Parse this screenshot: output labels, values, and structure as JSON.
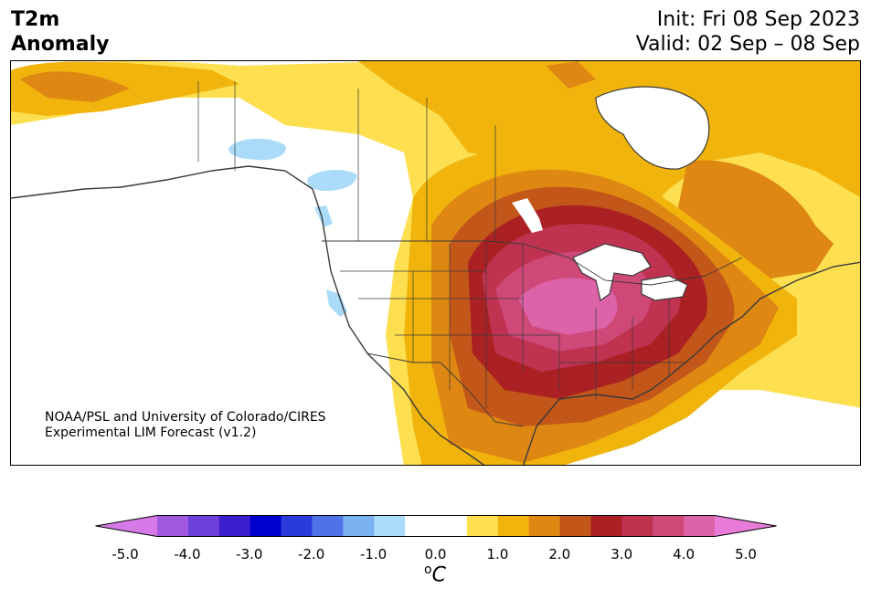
{
  "title": {
    "line1": "T2m",
    "line2": "Anomaly"
  },
  "init": "Init: Fri 08 Sep 2023",
  "valid": "Valid: 02 Sep – 08 Sep",
  "credit": {
    "line1": "NOAA/PSL and University of Colorado/CIRES",
    "line2": "Experimental LIM Forecast (v1.2)"
  },
  "colorbar": {
    "colors": [
      "#d67ae8",
      "#a259e0",
      "#6f3fd9",
      "#3e1fcf",
      "#0000cc",
      "#2a3bdc",
      "#4f73e6",
      "#7ab2f2",
      "#aadcfa",
      "#ffffff",
      "#ffffff",
      "#fddf50",
      "#f1b40d",
      "#de8713",
      "#c35619",
      "#aa2023",
      "#bf3350",
      "#ce4878",
      "#dc63a8",
      "#e87bd8"
    ],
    "ticks": [
      "-5.0",
      "-4.0",
      "-3.0",
      "-2.0",
      "-1.0",
      "0.0",
      "1.0",
      "2.0",
      "3.0",
      "4.0",
      "5.0"
    ],
    "unit": "C",
    "unit_prefix": "o"
  },
  "map_colors": {
    "yellow": "#fddf50",
    "gold": "#f1b40d",
    "orange": "#de8713",
    "rust": "#c35619",
    "red": "#aa2023",
    "crimson": "#bf3350",
    "rose": "#ce4878",
    "pink": "#dc63a8",
    "lightblue": "#aadcfa",
    "coast": "#3a3a3a"
  }
}
